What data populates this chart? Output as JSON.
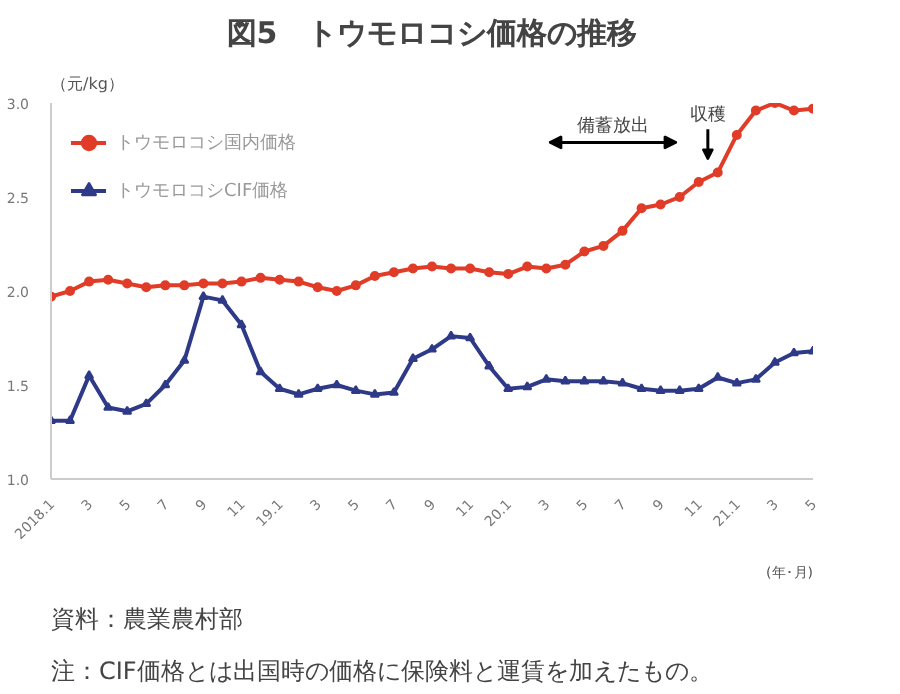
{
  "chart_data": {
    "type": "line",
    "title": "図5　トウモロコシ価格の推移",
    "xlabel": "(年･月)",
    "ylabel": "（元/kg）",
    "x": [
      "2018-01",
      "2018-02",
      "2018-03",
      "2018-04",
      "2018-05",
      "2018-06",
      "2018-07",
      "2018-08",
      "2018-09",
      "2018-10",
      "2018-11",
      "2018-12",
      "2019-01",
      "2019-02",
      "2019-03",
      "2019-04",
      "2019-05",
      "2019-06",
      "2019-07",
      "2019-08",
      "2019-09",
      "2019-10",
      "2019-11",
      "2019-12",
      "2020-01",
      "2020-02",
      "2020-03",
      "2020-04",
      "2020-05",
      "2020-06",
      "2020-07",
      "2020-08",
      "2020-09",
      "2020-10",
      "2020-11",
      "2020-12",
      "2021-01",
      "2021-02",
      "2021-03",
      "2021-04",
      "2021-05"
    ],
    "series": [
      {
        "name": "トウモロコシ国内価格",
        "color": "#e03c28",
        "marker": "circle",
        "values": [
          1.97,
          2.0,
          2.05,
          2.06,
          2.04,
          2.02,
          2.03,
          2.03,
          2.04,
          2.04,
          2.05,
          2.07,
          2.06,
          2.05,
          2.02,
          2.0,
          2.03,
          2.08,
          2.1,
          2.12,
          2.13,
          2.12,
          2.12,
          2.1,
          2.09,
          2.13,
          2.12,
          2.14,
          2.21,
          2.24,
          2.32,
          2.44,
          2.46,
          2.5,
          2.58,
          2.63,
          2.83,
          2.96,
          3.0,
          2.96,
          2.97
        ]
      },
      {
        "name": "トウモロコシCIF価格",
        "color": "#2e3a87",
        "marker": "triangle",
        "values": [
          1.31,
          1.31,
          1.55,
          1.38,
          1.36,
          1.4,
          1.5,
          1.63,
          1.97,
          1.95,
          1.82,
          1.57,
          1.48,
          1.45,
          1.48,
          1.5,
          1.47,
          1.45,
          1.46,
          1.64,
          1.69,
          1.76,
          1.75,
          1.6,
          1.48,
          1.49,
          1.53,
          1.52,
          1.52,
          1.52,
          1.51,
          1.48,
          1.47,
          1.47,
          1.48,
          1.54,
          1.51,
          1.53,
          1.62,
          1.67,
          1.68
        ]
      }
    ],
    "xlim": [
      "2018-01",
      "2021-05"
    ],
    "xticks": [
      {
        "value": "2018-01",
        "label": "2018.1"
      },
      {
        "value": "2018-03",
        "label": "3"
      },
      {
        "value": "2018-05",
        "label": "5"
      },
      {
        "value": "2018-07",
        "label": "7"
      },
      {
        "value": "2018-09",
        "label": "9"
      },
      {
        "value": "2018-11",
        "label": "11"
      },
      {
        "value": "2019-01",
        "label": "19.1"
      },
      {
        "value": "2019-03",
        "label": "3"
      },
      {
        "value": "2019-05",
        "label": "5"
      },
      {
        "value": "2019-07",
        "label": "7"
      },
      {
        "value": "2019-09",
        "label": "9"
      },
      {
        "value": "2019-11",
        "label": "11"
      },
      {
        "value": "2020-01",
        "label": "20.1"
      },
      {
        "value": "2020-03",
        "label": "3"
      },
      {
        "value": "2020-05",
        "label": "5"
      },
      {
        "value": "2020-07",
        "label": "7"
      },
      {
        "value": "2020-09",
        "label": "9"
      },
      {
        "value": "2020-11",
        "label": "11"
      },
      {
        "value": "2021-01",
        "label": "21.1"
      },
      {
        "value": "2021-03",
        "label": "3"
      },
      {
        "value": "2021-05",
        "label": "5"
      }
    ],
    "ylim": [
      1.0,
      3.0
    ],
    "yticks": [
      {
        "value": 1.0,
        "label": "1.0"
      },
      {
        "value": 1.5,
        "label": "1.5"
      },
      {
        "value": 2.0,
        "label": "2.0"
      },
      {
        "value": 2.5,
        "label": "2.5"
      },
      {
        "value": 3.0,
        "label": "3.0"
      }
    ],
    "grid": false,
    "legend": "top left",
    "line_style": "solid",
    "annotations": [
      "備蓄放出",
      "収穫",
      "資料：農業農村部",
      "注：CIF価格とは出国時の価格に保険料と運賃を加えたもの。"
    ]
  }
}
